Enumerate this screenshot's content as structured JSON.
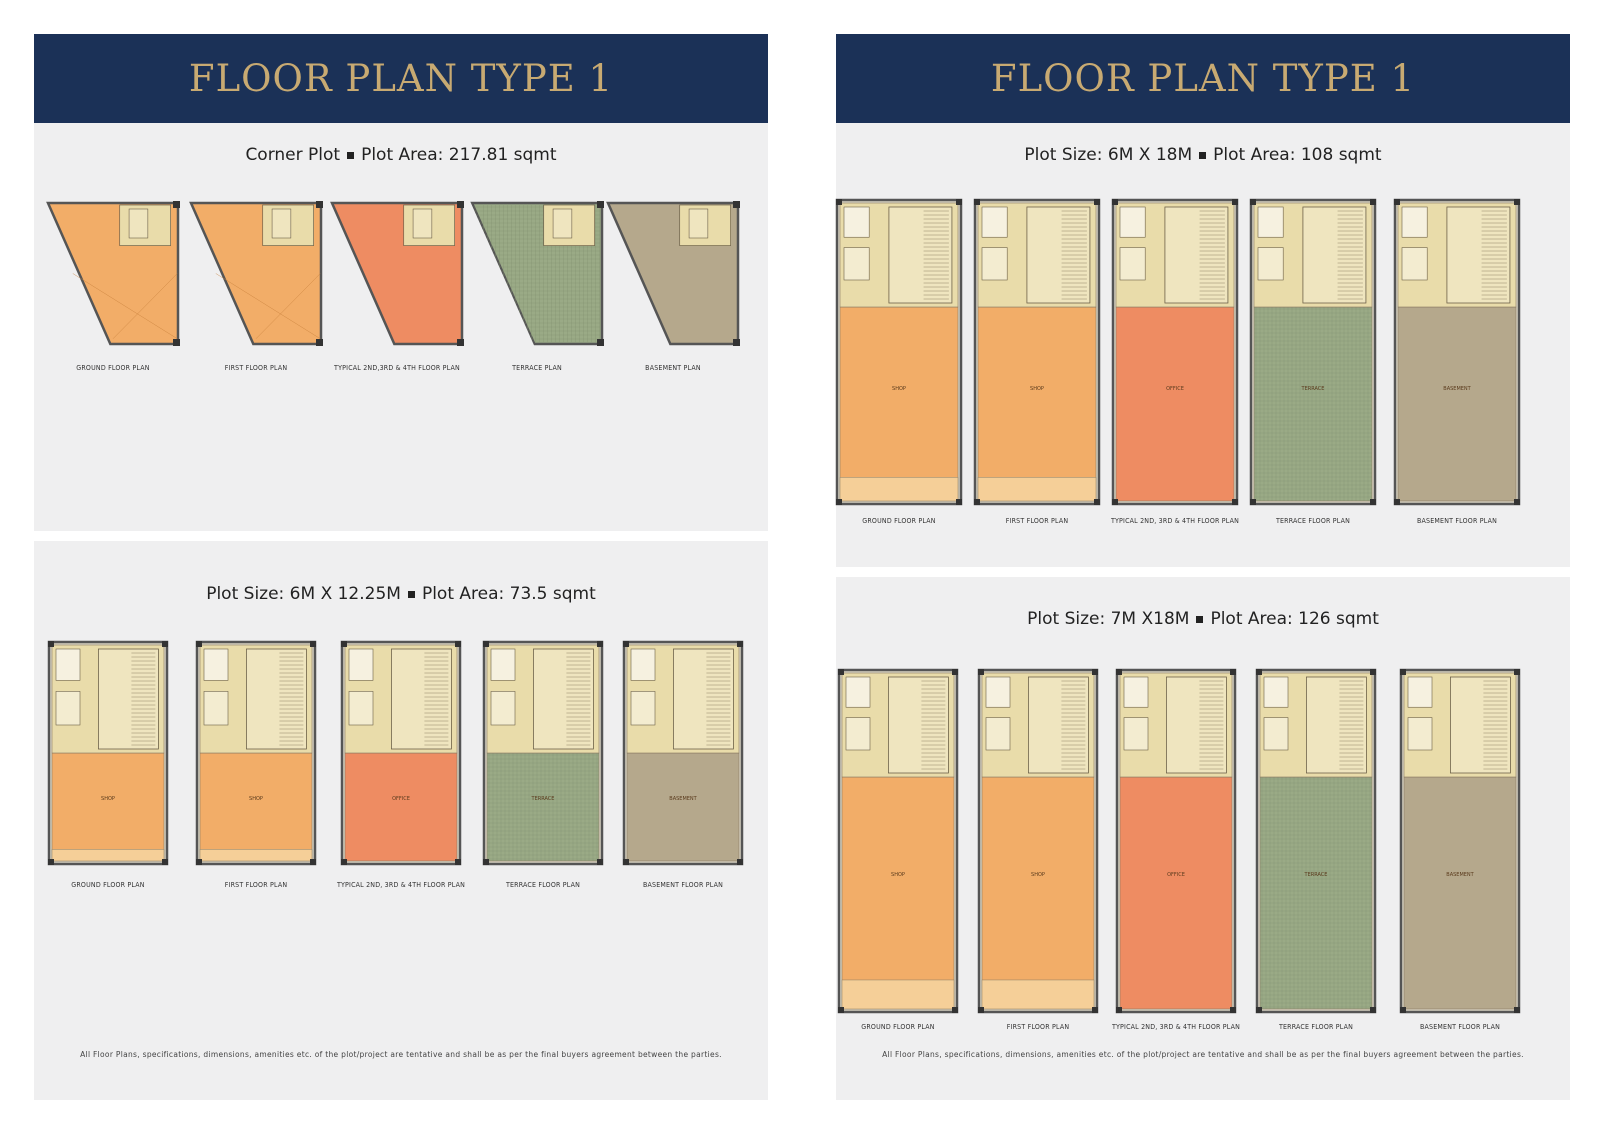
{
  "colors": {
    "banner": "#1b3157",
    "banner_text": "#c8aa72",
    "panel": "#efeff0",
    "shop": "#f2ad68",
    "office": "#ee8c62",
    "terrace": "#9aaa86",
    "basement": "#b5a88c",
    "core": "#e9dcaa",
    "wall": "#555555"
  },
  "left_page": {
    "title": "FLOOR PLAN TYPE 1",
    "corner_section": {
      "heading_a": "Corner Plot",
      "heading_b": "Plot Area: 217.81 sqmt",
      "plans": [
        {
          "label": "GROUND FLOOR PLAN",
          "kind": "shop"
        },
        {
          "label": "FIRST FLOOR PLAN",
          "kind": "shop"
        },
        {
          "label": "TYPICAL 2ND,3RD & 4TH FLOOR PLAN",
          "kind": "office"
        },
        {
          "label": "TERRACE PLAN",
          "kind": "terrace"
        },
        {
          "label": "BASEMENT PLAN",
          "kind": "basement"
        }
      ]
    },
    "small_section": {
      "heading_a": "Plot Size: 6M X 12.25M",
      "heading_b": "Plot Area: 73.5 sqmt",
      "plans": [
        {
          "label": "GROUND FLOOR PLAN",
          "kind": "shop",
          "room": "SHOP"
        },
        {
          "label": "FIRST FLOOR PLAN",
          "kind": "shop",
          "room": "SHOP"
        },
        {
          "label": "TYPICAL 2ND, 3RD & 4TH FLOOR PLAN",
          "kind": "office",
          "room": "OFFICE"
        },
        {
          "label": "TERRACE FLOOR PLAN",
          "kind": "terrace",
          "room": "TERRACE"
        },
        {
          "label": "BASEMENT FLOOR PLAN",
          "kind": "basement",
          "room": "BASEMENT"
        }
      ]
    },
    "disclaimer": "All Floor Plans, specifications, dimensions, amenities etc. of the plot/project are tentative and shall be as per the final buyers agreement between the parties."
  },
  "right_page": {
    "title": "FLOOR PLAN TYPE 1",
    "section_108": {
      "heading_a": "Plot Size: 6M X 18M",
      "heading_b": "Plot Area: 108 sqmt",
      "plans": [
        {
          "label": "GROUND FLOOR PLAN",
          "kind": "shop",
          "room": "SHOP"
        },
        {
          "label": "FIRST FLOOR PLAN",
          "kind": "shop",
          "room": "SHOP"
        },
        {
          "label": "TYPICAL 2ND, 3RD & 4TH FLOOR PLAN",
          "kind": "office",
          "room": "OFFICE"
        },
        {
          "label": "TERRACE FLOOR PLAN",
          "kind": "terrace",
          "room": "TERRACE"
        },
        {
          "label": "BASEMENT FLOOR PLAN",
          "kind": "basement",
          "room": "BASEMENT"
        }
      ]
    },
    "section_126": {
      "heading_a": "Plot Size: 7M X18M",
      "heading_b": "Plot Area: 126 sqmt",
      "plans": [
        {
          "label": "GROUND FLOOR PLAN",
          "kind": "shop",
          "room": "SHOP"
        },
        {
          "label": "FIRST FLOOR PLAN",
          "kind": "shop",
          "room": "SHOP"
        },
        {
          "label": "TYPICAL 2ND, 3RD & 4TH FLOOR PLAN",
          "kind": "office",
          "room": "OFFICE"
        },
        {
          "label": "TERRACE FLOOR PLAN",
          "kind": "terrace",
          "room": "TERRACE"
        },
        {
          "label": "BASEMENT FLOOR PLAN",
          "kind": "basement",
          "room": "BASEMENT"
        }
      ]
    },
    "disclaimer": "All Floor Plans, specifications, dimensions, amenities etc. of the plot/project are tentative and shall be as per the final buyers agreement between the parties."
  }
}
